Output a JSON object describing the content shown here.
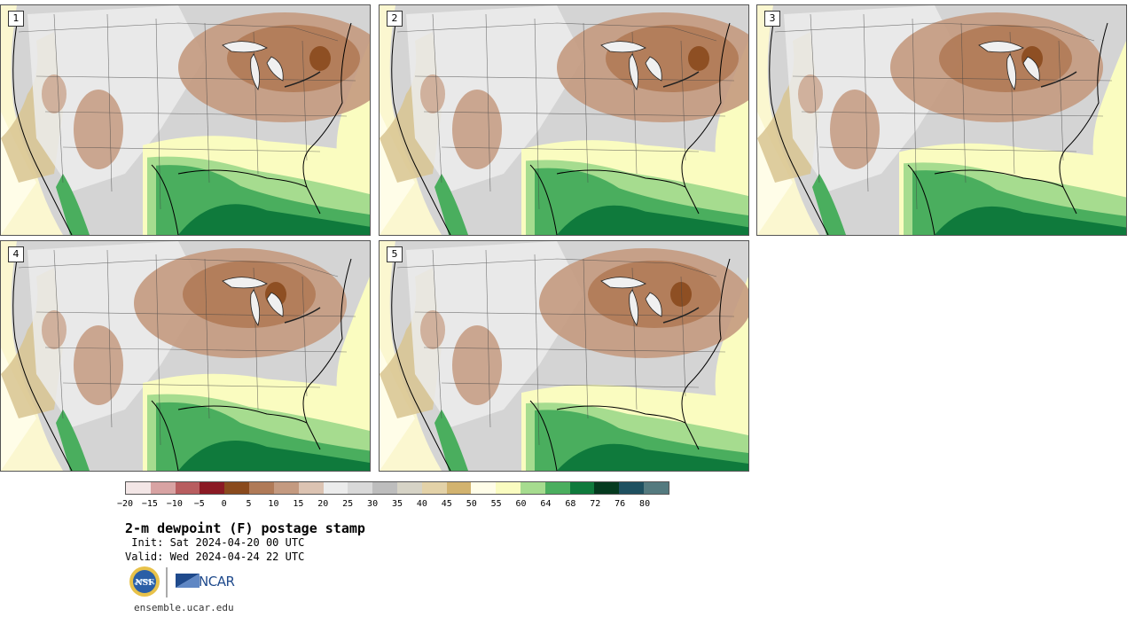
{
  "panels": [
    {
      "label": "1",
      "moist_reach": 0.92,
      "dry_center": "east"
    },
    {
      "label": "2",
      "moist_reach": 0.88,
      "dry_center": "east"
    },
    {
      "label": "3",
      "moist_reach": 0.85,
      "dry_center": "north"
    },
    {
      "label": "4",
      "moist_reach": 0.9,
      "dry_center": "north"
    },
    {
      "label": "5",
      "moist_reach": 0.8,
      "dry_center": "lakes"
    }
  ],
  "colorbar": {
    "colors": [
      "#f3e6e6",
      "#d8a3a3",
      "#b85d5f",
      "#8b1a24",
      "#8a4a1d",
      "#b07a57",
      "#c49a80",
      "#dcc3b2",
      "#ececec",
      "#d9d9d9",
      "#bdbdbd",
      "#d6d3c6",
      "#e3d2a8",
      "#d2b36f",
      "#fffde8",
      "#fafcc0",
      "#a6dc8f",
      "#4aae5e",
      "#0f7a3c",
      "#053a1f",
      "#1e5060",
      "#547a7f"
    ],
    "tick_labels": [
      "−20",
      "−15",
      "−10",
      "−5",
      "0",
      "5",
      "10",
      "15",
      "20",
      "25",
      "30",
      "35",
      "40",
      "45",
      "50",
      "55",
      "60",
      "64",
      "68",
      "72",
      "76",
      "80"
    ]
  },
  "title": "2-m dewpoint (F) postage stamp",
  "init_text": " Init: Sat 2024-04-20 00 UTC",
  "valid_text": "Valid: Wed 2024-04-24 22 UTC",
  "logos": {
    "nsf_text": "NSF",
    "ncar_text": "NCAR"
  },
  "footer_url": "ensemble.ucar.edu"
}
